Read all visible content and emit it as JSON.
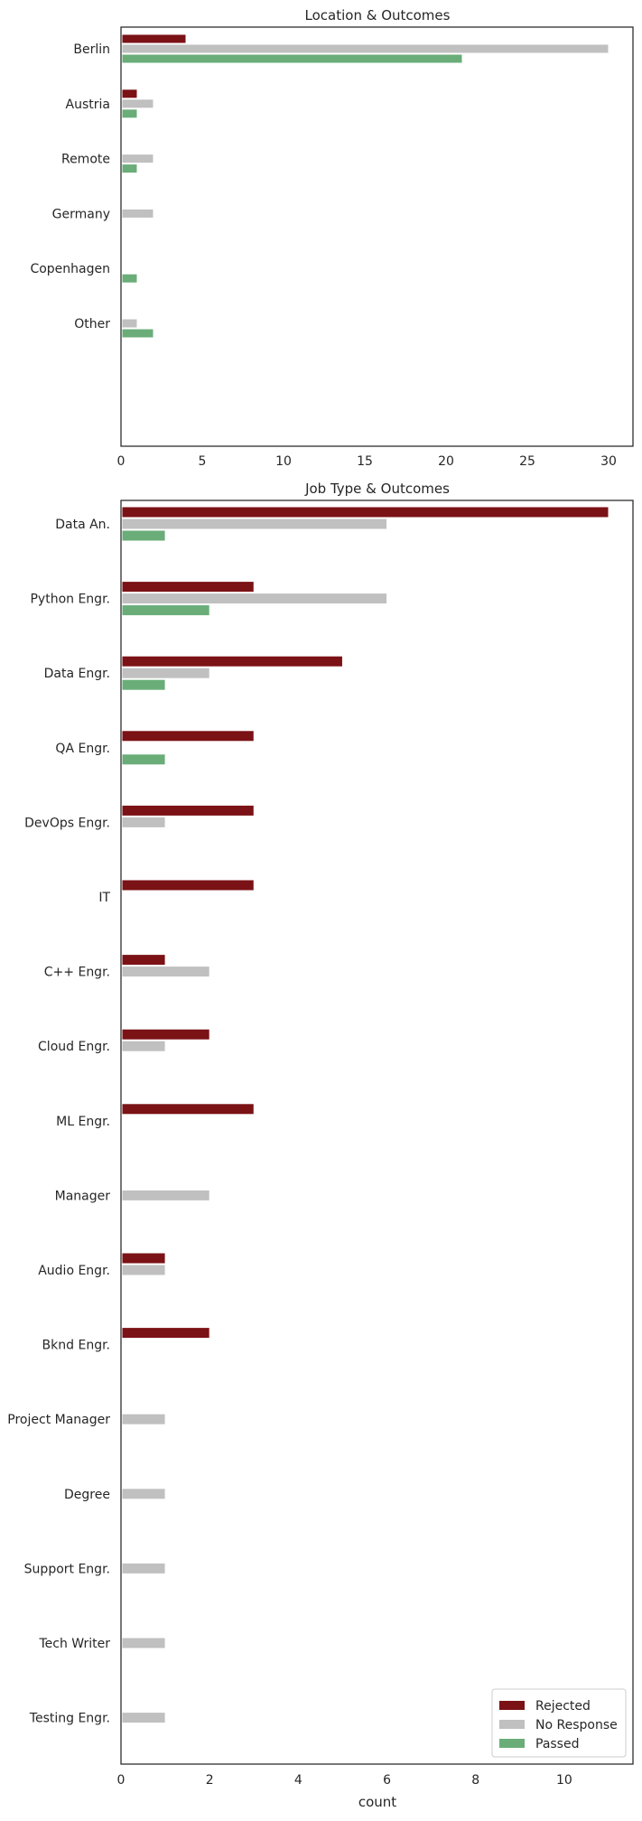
{
  "colors": {
    "rejected": "#7b1216",
    "no_response": "#c0c0c0",
    "passed": "#6aad78",
    "frame": "#262626"
  },
  "chart_data": [
    {
      "type": "bar",
      "orientation": "horizontal",
      "title": "Location & Outcomes",
      "xlabel": "",
      "ylabel": "",
      "categories": [
        "Berlin",
        "Austria",
        "Remote",
        "Germany",
        "Copenhagen",
        "Other"
      ],
      "series": [
        {
          "name": "Rejected",
          "values": [
            4,
            1,
            0,
            0,
            0,
            0
          ]
        },
        {
          "name": "No Response",
          "values": [
            30,
            2,
            2,
            2,
            0,
            1
          ]
        },
        {
          "name": "Passed",
          "values": [
            21,
            1,
            1,
            0,
            1,
            2
          ]
        }
      ],
      "xlim": [
        0,
        31.5
      ],
      "xticks": [
        "0",
        "5",
        "10",
        "15",
        "20",
        "25",
        "30"
      ],
      "grid": false
    },
    {
      "type": "bar",
      "orientation": "horizontal",
      "title": "Job Type & Outcomes",
      "xlabel": "count",
      "ylabel": "",
      "categories": [
        "Data An.",
        "Python Engr.",
        "Data Engr.",
        "QA Engr.",
        "DevOps Engr.",
        "IT",
        "C++ Engr.",
        "Cloud Engr.",
        "ML Engr.",
        "Manager",
        "Audio Engr.",
        "Bknd Engr.",
        "Project Manager",
        "Degree",
        "Support Engr.",
        "Tech Writer",
        "Testing Engr."
      ],
      "series": [
        {
          "name": "Rejected",
          "values": [
            11,
            3,
            5,
            3,
            3,
            3,
            1,
            2,
            3,
            0,
            1,
            2,
            0,
            0,
            0,
            0,
            0
          ]
        },
        {
          "name": "No Response",
          "values": [
            6,
            6,
            2,
            0,
            1,
            0,
            2,
            1,
            0,
            2,
            1,
            0,
            1,
            1,
            1,
            1,
            1
          ]
        },
        {
          "name": "Passed",
          "values": [
            1,
            2,
            1,
            1,
            0,
            0,
            0,
            0,
            0,
            0,
            0,
            0,
            0,
            0,
            0,
            0,
            0
          ]
        }
      ],
      "xlim": [
        0,
        11.55
      ],
      "xticks": [
        "0",
        "2",
        "4",
        "6",
        "8",
        "10"
      ],
      "grid": false,
      "legend": {
        "placement": "bottom-right",
        "entries": [
          "Rejected",
          "No Response",
          "Passed"
        ]
      }
    }
  ]
}
